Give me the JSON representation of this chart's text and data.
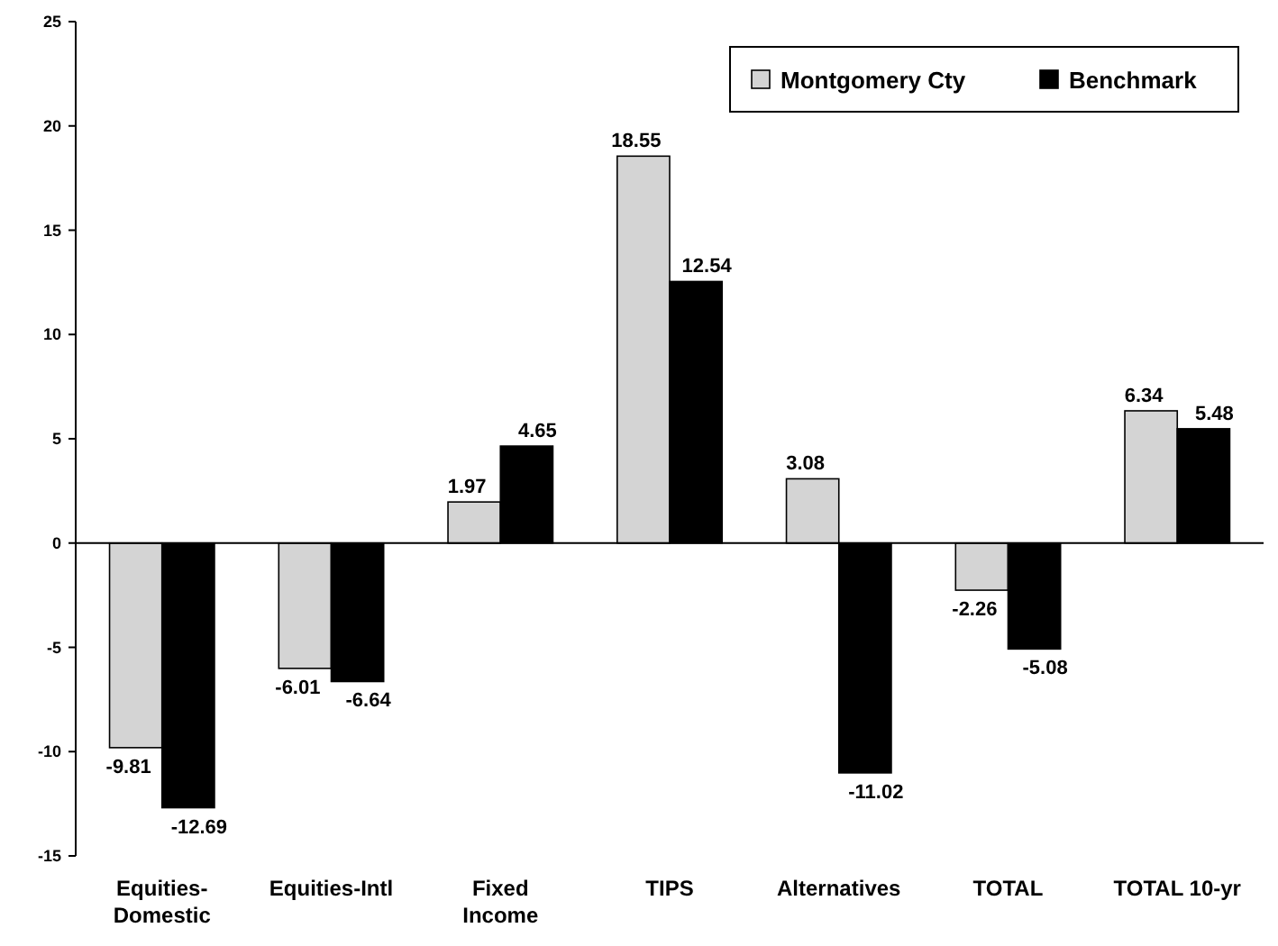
{
  "chart_data": {
    "type": "bar",
    "categories": [
      "Equities-\nDomestic",
      "Equities-Intl",
      "Fixed\nIncome",
      "TIPS",
      "Alternatives",
      "TOTAL",
      "TOTAL 10-yr"
    ],
    "series": [
      {
        "name": "Montgomery Cty",
        "color": "#d4d4d4",
        "values": [
          -9.81,
          -6.01,
          1.97,
          18.55,
          3.08,
          -2.26,
          6.34
        ]
      },
      {
        "name": "Benchmark",
        "color": "#000000",
        "values": [
          -12.69,
          -6.64,
          4.65,
          12.54,
          -11.02,
          -5.08,
          5.48
        ]
      }
    ],
    "ylim": [
      -15,
      25
    ],
    "yticks": [
      -15,
      -10,
      -5,
      0,
      5,
      10,
      15,
      20,
      25
    ],
    "legend": "top right",
    "data_labels": true
  }
}
